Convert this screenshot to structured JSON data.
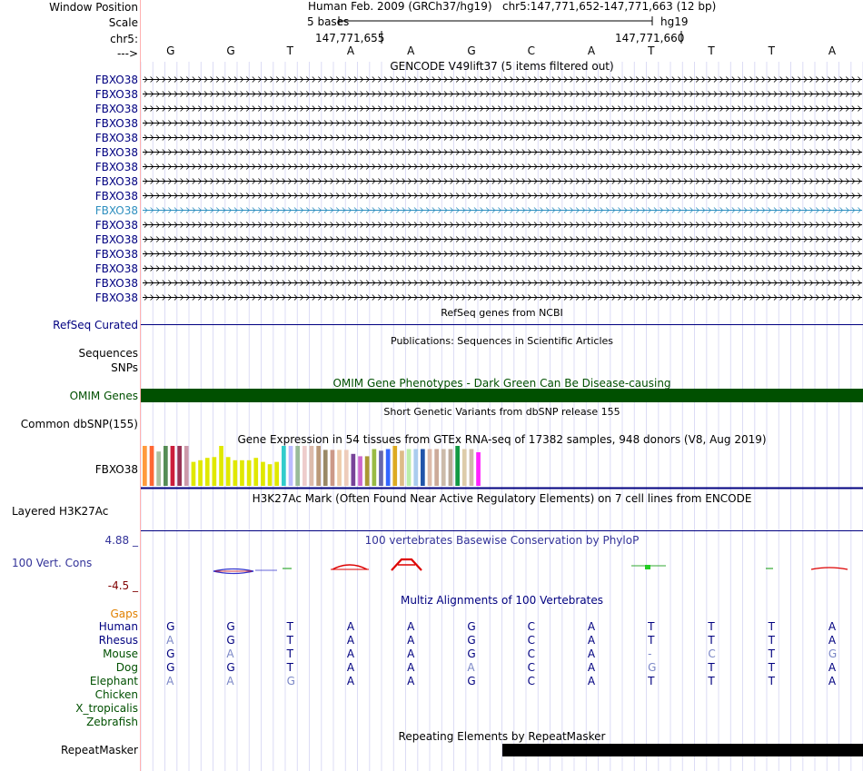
{
  "colors": {
    "navy": "#000080",
    "gencode_hl": "#2e8fbf",
    "omim": "#005000",
    "gaps": "#e08000",
    "green_species": "#005000",
    "phylo_title": "#333399",
    "phylo_low": "#800000",
    "faded": "#7a86c6",
    "grid": "#dcdcf5"
  },
  "header": {
    "window_position_label": "Window Position",
    "scale_label": "Scale",
    "chr_label": "chr5:",
    "arrow_label": "--->",
    "assembly": "Human Feb. 2009 (GRCh37/hg19)",
    "position": "chr5:147,771,652-147,771,663 (12 bp)",
    "scale_text": "5 bases",
    "db": "hg19",
    "tick_left": "147,771,655",
    "tick_right": "147,771,660"
  },
  "bases": [
    "G",
    "G",
    "T",
    "A",
    "A",
    "G",
    "C",
    "A",
    "T",
    "T",
    "T",
    "A"
  ],
  "gencode": {
    "title": "GENCODE V49lift37 (5 items filtered out)",
    "items": [
      "FBXO38",
      "FBXO38",
      "FBXO38",
      "FBXO38",
      "FBXO38",
      "FBXO38",
      "FBXO38",
      "FBXO38",
      "FBXO38",
      "FBXO38",
      "FBXO38",
      "FBXO38",
      "FBXO38",
      "FBXO38",
      "FBXO38",
      "FBXO38"
    ],
    "highlight_index": 9
  },
  "refseq": {
    "title": "RefSeq genes from NCBI",
    "label": "RefSeq Curated"
  },
  "publications": {
    "title": "Publications: Sequences in Scientific Articles",
    "label1": "Sequences",
    "label2": "SNPs"
  },
  "omim": {
    "title": "OMIM Gene Phenotypes - Dark Green Can Be Disease-causing",
    "label": "OMIM Genes"
  },
  "dbsnp": {
    "title": "Short Genetic Variants from dbSNP release 155",
    "label": "Common dbSNP(155)"
  },
  "gtex": {
    "title": "Gene Expression in 54 tissues from GTEx RNA-seq of 17382 samples, 948 donors (V8, Aug 2019)",
    "label": "FBXO38",
    "bar_colors": [
      "#ff9a3c",
      "#ff6633",
      "#aac0a0",
      "#558c55",
      "#cc1e3c",
      "#993355",
      "#cc99aa",
      "#e0e800",
      "#e0e800",
      "#e0e800",
      "#e0e800",
      "#e0e800",
      "#e0e800",
      "#e0e800",
      "#e0e800",
      "#e0e800",
      "#e0e800",
      "#e0e800",
      "#e0e800",
      "#e0e800",
      "#33cccc",
      "#bbbbff",
      "#99bb99",
      "#eecccc",
      "#ddbbaa",
      "#bb9977",
      "#998866",
      "#cc9988",
      "#eeccaa",
      "#eeccbb",
      "#774499",
      "#cc66cc",
      "#aa9933",
      "#99bb44",
      "#6666aa",
      "#3366ff",
      "#ddaa22",
      "#ddbb88",
      "#bbeeaa",
      "#aaccee",
      "#2255aa",
      "#ddbbaa",
      "#ccaa99",
      "#ccbbaa",
      "#bbaa99",
      "#119944",
      "#ddccaa",
      "#ccbbaa",
      "#ff22ff"
    ],
    "bar_values": [
      100,
      100,
      86,
      100,
      100,
      100,
      100,
      60,
      64,
      70,
      72,
      100,
      72,
      64,
      64,
      64,
      70,
      60,
      54,
      60,
      100,
      100,
      100,
      100,
      100,
      100,
      90,
      90,
      90,
      90,
      80,
      74,
      74,
      92,
      88,
      92,
      100,
      88,
      92,
      92,
      92,
      92,
      92,
      92,
      92,
      100,
      92,
      92,
      84
    ]
  },
  "h3k27ac": {
    "title": "H3K27Ac Mark (Often Found Near Active Regulatory Elements) on 7 cell lines from ENCODE",
    "label": "Layered H3K27Ac"
  },
  "phylop": {
    "title": "100 vertebrates Basewise Conservation by PhyloP",
    "label": "100 Vert. Cons",
    "high": "4.88 _",
    "low": "-4.5 _"
  },
  "multiz": {
    "title": "Multiz Alignments of 100 Vertebrates",
    "gaps_label": "Gaps",
    "species": [
      {
        "name": "Human",
        "seq": [
          "G",
          "G",
          "T",
          "A",
          "A",
          "G",
          "C",
          "A",
          "T",
          "T",
          "T",
          "A"
        ]
      },
      {
        "name": "Rhesus",
        "seq": [
          "A",
          "G",
          "T",
          "A",
          "A",
          "G",
          "C",
          "A",
          "T",
          "T",
          "T",
          "A"
        ]
      },
      {
        "name": "Mouse",
        "seq": [
          "G",
          "A",
          "T",
          "A",
          "A",
          "G",
          "C",
          "A",
          "-",
          "C",
          "T",
          "G"
        ]
      },
      {
        "name": "Dog",
        "seq": [
          "G",
          "G",
          "T",
          "A",
          "A",
          "A",
          "C",
          "A",
          "G",
          "T",
          "T",
          "A"
        ]
      },
      {
        "name": "Elephant",
        "seq": [
          "A",
          "A",
          "G",
          "A",
          "A",
          "G",
          "C",
          "A",
          "T",
          "T",
          "T",
          "A"
        ]
      },
      {
        "name": "Chicken",
        "seq": []
      },
      {
        "name": "X_tropicalis",
        "seq": []
      },
      {
        "name": "Zebrafish",
        "seq": []
      }
    ]
  },
  "repeatmasker": {
    "title": "Repeating Elements by RepeatMasker",
    "label": "RepeatMasker"
  }
}
